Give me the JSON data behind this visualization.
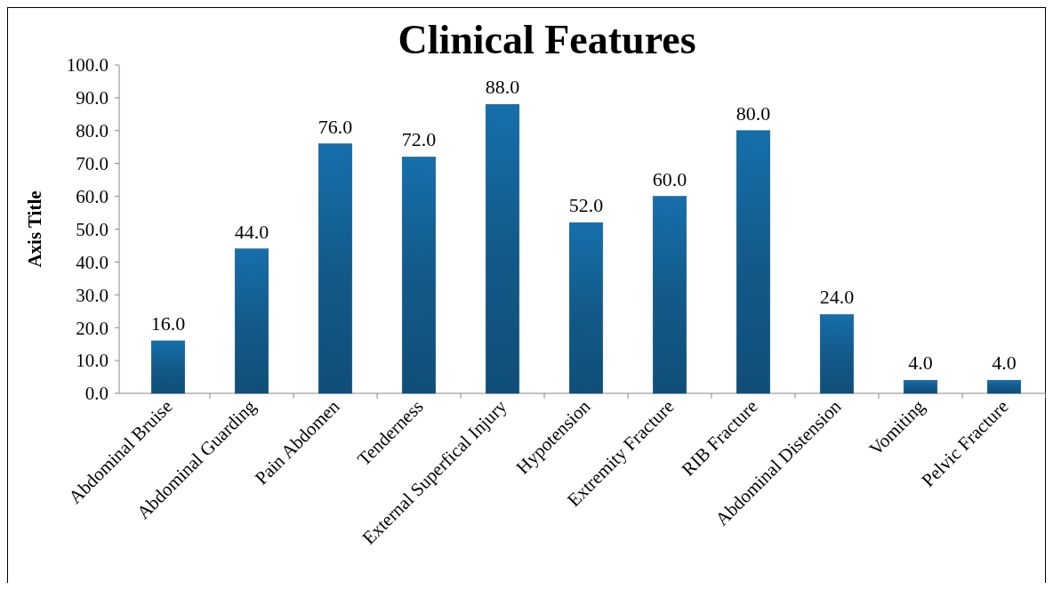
{
  "chart_data": {
    "type": "bar",
    "title": "Clinical Features",
    "ylabel": "Axis Title",
    "categories": [
      "Abdominal Bruise",
      "Abdominal Guarding",
      "Pain Abdomen",
      "Tenderness",
      "External Superfical Injury",
      "Hypotension",
      "Extremity Fracture",
      "RIB Fracture",
      "Abdominal Distension",
      "Vomiting",
      "Pelvic Fracture"
    ],
    "values": [
      16,
      44,
      76,
      72,
      88,
      52,
      60,
      80,
      24,
      4,
      4
    ],
    "value_labels": [
      "16.0",
      "44.0",
      "76.0",
      "72.0",
      "88.0",
      "52.0",
      "60.0",
      "80.0",
      "24.0",
      "4.0",
      "4.0"
    ],
    "color": "#125a8a",
    "ylim": [
      0,
      100
    ],
    "yticks": [
      {
        "value": 0,
        "label": "0.0"
      },
      {
        "value": 10,
        "label": "10.0"
      },
      {
        "value": 20,
        "label": "20.0"
      },
      {
        "value": 30,
        "label": "30.0"
      },
      {
        "value": 40,
        "label": "40.0"
      },
      {
        "value": 50,
        "label": "50.0"
      },
      {
        "value": 60,
        "label": "60.0"
      },
      {
        "value": 70,
        "label": "70.0"
      },
      {
        "value": 80,
        "label": "80.0"
      },
      {
        "value": 90,
        "label": "90.0"
      },
      {
        "value": 100,
        "label": "100.0"
      }
    ],
    "grid": false
  }
}
